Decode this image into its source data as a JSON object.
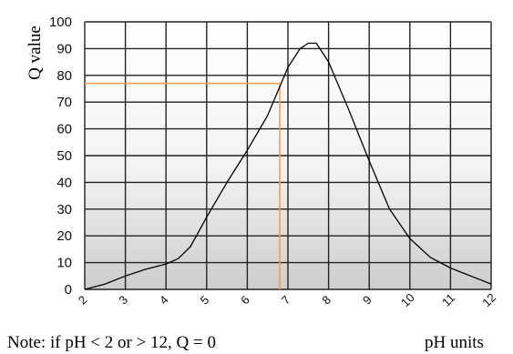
{
  "chart_data": {
    "type": "line",
    "ylabel": "Q value",
    "xlabel": "pH units",
    "note": "Note: if pH < 2 or > 12, Q = 0",
    "xlim": [
      2,
      12
    ],
    "ylim": [
      0,
      100
    ],
    "x_ticks": [
      2,
      3,
      4,
      5,
      6,
      7,
      8,
      9,
      10,
      11,
      12
    ],
    "y_ticks": [
      0,
      10,
      20,
      30,
      40,
      50,
      60,
      70,
      80,
      90,
      100
    ],
    "grid": true,
    "series": [
      {
        "color": "#000000",
        "x": [
          2,
          2.5,
          3,
          3.5,
          4,
          4.3,
          4.6,
          5,
          5.5,
          6,
          6.5,
          7,
          7.3,
          7.5,
          7.7,
          8,
          8.5,
          9,
          9.5,
          10,
          10.5,
          11,
          11.5,
          12
        ],
        "y": [
          0,
          2,
          5,
          7.5,
          9.5,
          11.5,
          16,
          27,
          40,
          52,
          65,
          83,
          90,
          92,
          92,
          85,
          67,
          48,
          30,
          19,
          12,
          8,
          5,
          2
        ]
      }
    ],
    "annotation": {
      "color": "#f39c50",
      "x": 6.8,
      "y": 77
    }
  }
}
